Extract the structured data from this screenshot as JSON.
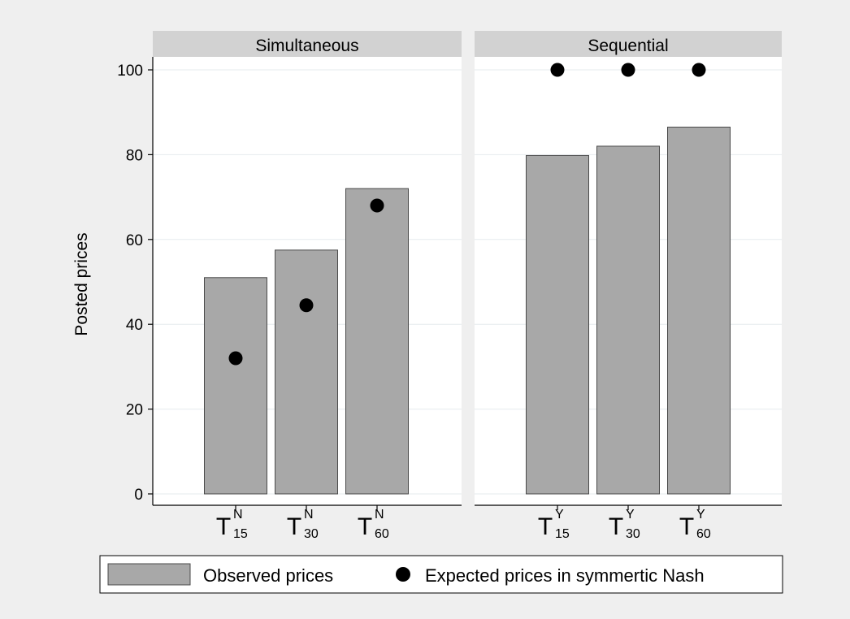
{
  "chart_data": {
    "type": "bar",
    "ylabel": "Posted prices",
    "ylim": [
      0,
      100
    ],
    "yticks": [
      0,
      20,
      40,
      60,
      80,
      100
    ],
    "grid": true,
    "legend_position": "bottom",
    "colors": {
      "bar": "#a8a8a8",
      "bar_stroke": "#4a4a4a",
      "dot": "#000000",
      "strip": "#d2d2d2",
      "panel_bg": "#efefef"
    },
    "legend": [
      {
        "label": "Observed prices",
        "marker": "bar"
      },
      {
        "label": "Expected prices in symmertic Nash",
        "marker": "dot"
      }
    ],
    "panels": [
      {
        "title": "Simultaneous",
        "categories": [
          {
            "base": "T",
            "sup": "N",
            "sub": "15"
          },
          {
            "base": "T",
            "sup": "N",
            "sub": "30"
          },
          {
            "base": "T",
            "sup": "N",
            "sub": "60"
          }
        ],
        "observed": [
          51,
          57.5,
          72
        ],
        "expected": [
          32,
          44.5,
          68
        ]
      },
      {
        "title": "Sequential",
        "categories": [
          {
            "base": "T",
            "sup": "Y",
            "sub": "15"
          },
          {
            "base": "T",
            "sup": "Y",
            "sub": "30"
          },
          {
            "base": "T",
            "sup": "Y",
            "sub": "60"
          }
        ],
        "observed": [
          79.8,
          82,
          86.5
        ],
        "expected": [
          100,
          100,
          100
        ]
      }
    ]
  }
}
